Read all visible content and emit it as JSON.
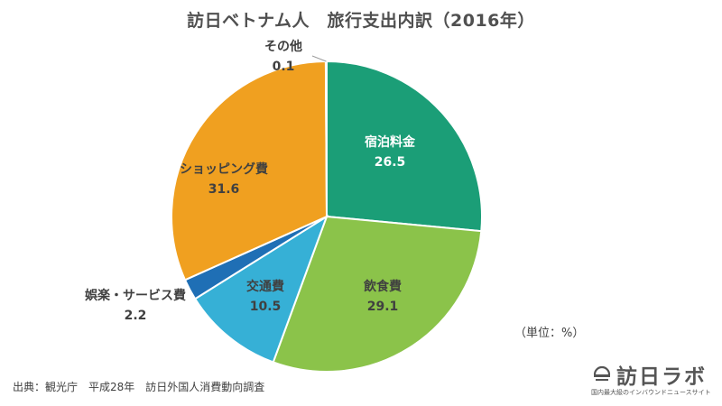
{
  "chart_data": {
    "type": "pie",
    "title": "訪日ベトナム人　旅行支出内訳（2016年）",
    "unit_note": "（単位：%）",
    "slices": [
      {
        "label": "宿泊料金",
        "value": 26.5,
        "display": "26.5",
        "color": "#1b9e77"
      },
      {
        "label": "飲食費",
        "value": 29.1,
        "display": "29.1",
        "color": "#8bc34a"
      },
      {
        "label": "交通費",
        "value": 10.5,
        "display": "10.5",
        "color": "#36b0d6"
      },
      {
        "label": "娯楽・サービス費",
        "value": 2.2,
        "display": "2.2",
        "color": "#1f6fb5"
      },
      {
        "label": "ショッピング費",
        "value": 31.6,
        "display": "31.6",
        "color": "#f0a020"
      },
      {
        "label": "その他",
        "value": 0.1,
        "display": "0.1",
        "color": "#9e9e9e"
      }
    ]
  },
  "source": "出典：観光庁　平成28年　訪日外国人消費動向調査",
  "logo": {
    "main": "訪日ラボ",
    "sub": "国内最大級のインバウンドニュースサイト"
  }
}
